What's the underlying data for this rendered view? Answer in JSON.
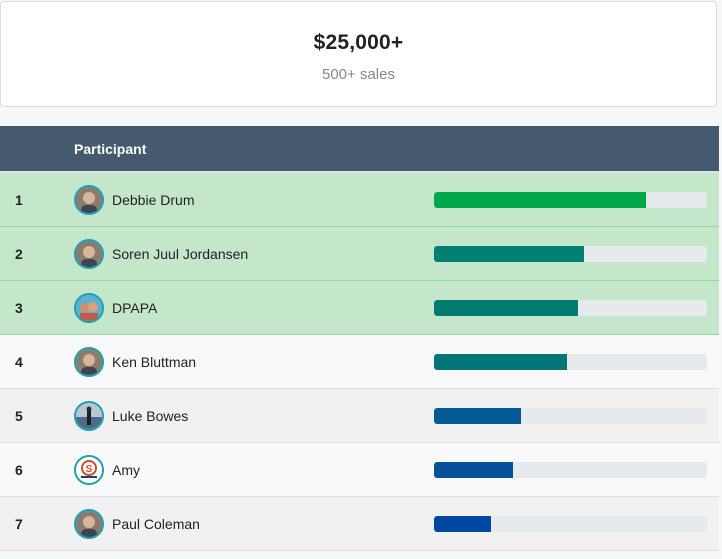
{
  "summary": {
    "amount": "$25,000+",
    "subtitle": "500+ sales"
  },
  "table": {
    "columns": {
      "rank": "",
      "participant": "Participant",
      "progress": ""
    },
    "rows": [
      {
        "rank": "1",
        "name": "Debbie Drum",
        "avatar": "person-photo-avatar",
        "progress": 0.777,
        "bar_color": "#00a84a",
        "highlight": true
      },
      {
        "rank": "2",
        "name": "Soren Juul Jordansen",
        "avatar": "person-photo-avatar",
        "progress": 0.55,
        "bar_color": "#008070",
        "highlight": true
      },
      {
        "rank": "3",
        "name": "DPAPA",
        "avatar": "couple-photo-avatar",
        "progress": 0.527,
        "bar_color": "#007c6e",
        "highlight": true
      },
      {
        "rank": "4",
        "name": "Ken Bluttman",
        "avatar": "person-photo-avatar",
        "progress": 0.487,
        "bar_color": "#007676",
        "highlight": false
      },
      {
        "rank": "5",
        "name": "Luke Bowes",
        "avatar": "landscape-photo-avatar",
        "progress": 0.319,
        "bar_color": "#055996",
        "highlight": false
      },
      {
        "rank": "6",
        "name": "Amy",
        "avatar": "logo-avatar",
        "progress": 0.289,
        "bar_color": "#05529a",
        "highlight": false
      },
      {
        "rank": "7",
        "name": "Paul Coleman",
        "avatar": "person-photo-avatar",
        "progress": 0.209,
        "bar_color": "#0246a4",
        "highlight": false
      }
    ]
  }
}
